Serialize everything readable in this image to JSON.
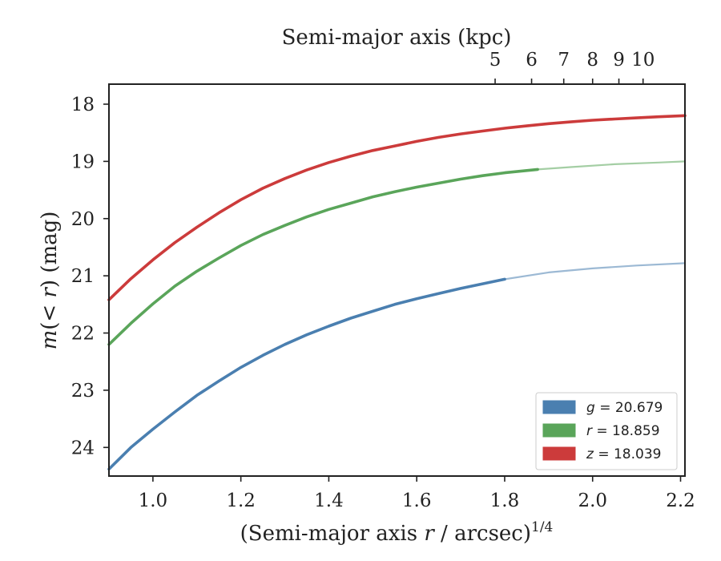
{
  "chart_data": {
    "type": "line",
    "xlabel": "(Semi-major axis r / arcsec)",
    "xlabel_parts": {
      "pre": "(Semi-major axis ",
      "var": "r",
      "post": " / arcsec)",
      "sup": "1/4"
    },
    "ylabel": "m(<r) (mag)",
    "ylabel_parts": {
      "var": "m",
      "mid": "(",
      "inner": "< r",
      "post": ") (mag)"
    },
    "top_xlabel": "Semi-major axis (kpc)",
    "xlim": [
      0.9,
      2.21
    ],
    "ylim": [
      24.5,
      17.65
    ],
    "y_inverted": true,
    "x_ticks": [
      1.0,
      1.2,
      1.4,
      1.6,
      1.8,
      2.0,
      2.2
    ],
    "x_tick_labels": [
      "1.0",
      "1.2",
      "1.4",
      "1.6",
      "1.8",
      "2.0",
      "2.2"
    ],
    "y_ticks": [
      18,
      19,
      20,
      21,
      22,
      23,
      24
    ],
    "y_tick_labels": [
      "18",
      "19",
      "20",
      "21",
      "22",
      "23",
      "24"
    ],
    "top_ticks_kpc": [
      5,
      6,
      7,
      8,
      9,
      10
    ],
    "top_tick_labels": [
      "5",
      "6",
      "7",
      "8",
      "9",
      "10"
    ],
    "kpc_per_arcsec": 0.5,
    "grid": false,
    "legend_position": "lower-right",
    "series": [
      {
        "name": "g = 20.679",
        "legend_var": "g",
        "legend_value": "= 20.679",
        "color": "#4a7fb0",
        "measured_x": [
          0.9,
          0.95,
          1.0,
          1.05,
          1.1,
          1.15,
          1.2,
          1.25,
          1.3,
          1.35,
          1.4,
          1.45,
          1.5,
          1.55,
          1.6,
          1.65,
          1.7,
          1.75,
          1.8
        ],
        "measured_y": [
          24.38,
          24.0,
          23.68,
          23.38,
          23.09,
          22.84,
          22.6,
          22.39,
          22.2,
          22.03,
          21.88,
          21.74,
          21.62,
          21.5,
          21.4,
          21.31,
          21.22,
          21.14,
          21.06
        ],
        "model_x": [
          1.8,
          1.9,
          2.0,
          2.1,
          2.21
        ],
        "model_y": [
          21.06,
          20.94,
          20.87,
          20.82,
          20.78
        ]
      },
      {
        "name": "r = 18.859",
        "legend_var": "r",
        "legend_value": "= 18.859",
        "color": "#5aa55a",
        "measured_x": [
          0.9,
          0.95,
          1.0,
          1.05,
          1.1,
          1.15,
          1.2,
          1.25,
          1.3,
          1.35,
          1.4,
          1.45,
          1.5,
          1.55,
          1.6,
          1.65,
          1.7,
          1.75,
          1.8,
          1.875
        ],
        "measured_y": [
          22.2,
          21.83,
          21.49,
          21.18,
          20.92,
          20.69,
          20.47,
          20.28,
          20.12,
          19.97,
          19.84,
          19.73,
          19.62,
          19.53,
          19.45,
          19.38,
          19.31,
          19.25,
          19.2,
          19.14
        ],
        "model_x": [
          1.875,
          1.95,
          2.05,
          2.15,
          2.21
        ],
        "model_y": [
          19.14,
          19.1,
          19.05,
          19.02,
          19.0
        ]
      },
      {
        "name": "z = 18.039",
        "legend_var": "z",
        "legend_value": "= 18.039",
        "color": "#cc3b3b",
        "measured_x": [
          0.9,
          0.95,
          1.0,
          1.05,
          1.1,
          1.15,
          1.2,
          1.25,
          1.3,
          1.35,
          1.4,
          1.45,
          1.5,
          1.55,
          1.6,
          1.65,
          1.7,
          1.75,
          1.8,
          1.85,
          1.9,
          1.95,
          2.0,
          2.05,
          2.1,
          2.15,
          2.21
        ],
        "measured_y": [
          21.42,
          21.05,
          20.72,
          20.42,
          20.15,
          19.9,
          19.67,
          19.47,
          19.3,
          19.15,
          19.02,
          18.91,
          18.81,
          18.73,
          18.65,
          18.58,
          18.52,
          18.47,
          18.42,
          18.38,
          18.34,
          18.31,
          18.28,
          18.26,
          18.24,
          18.22,
          18.2
        ],
        "model_x": [],
        "model_y": []
      }
    ]
  }
}
